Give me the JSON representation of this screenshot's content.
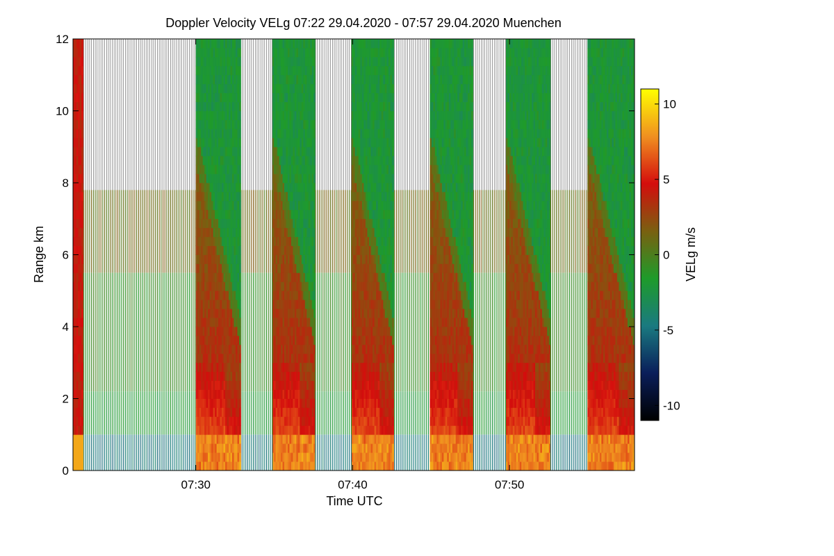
{
  "chart_data": {
    "type": "heatmap",
    "title": "Doppler Velocity VELg   07:22 29.04.2020 - 07:57 29.04.2020 Muenchen",
    "xlabel": "Time UTC",
    "ylabel": "Range km",
    "x_range_minutes": [
      0,
      35.8
    ],
    "x_start_time": "07:22:10",
    "x_ticks": [
      {
        "label": "07:30",
        "minute": 7.83
      },
      {
        "label": "07:40",
        "minute": 17.83
      },
      {
        "label": "07:50",
        "minute": 27.83
      }
    ],
    "ylim": [
      0,
      12
    ],
    "y_ticks": [
      0,
      2,
      4,
      6,
      8,
      10,
      12
    ],
    "colorbar": {
      "label": "VELg m/s",
      "range": [
        -11,
        11
      ],
      "ticks": [
        -10,
        -5,
        0,
        5,
        10
      ],
      "stops": [
        "#000000",
        "#0a1e5a",
        "#1a7a80",
        "#1e9b2a",
        "#7a6010",
        "#d40d0d",
        "#f09020",
        "#ffff00"
      ]
    },
    "dense_scans": [
      {
        "start_min": 0.0,
        "end_min": 0.65
      },
      {
        "start_min": 7.83,
        "end_min": 10.7
      },
      {
        "start_min": 12.7,
        "end_min": 15.45
      },
      {
        "start_min": 17.75,
        "end_min": 20.45
      },
      {
        "start_min": 22.75,
        "end_min": 25.5
      },
      {
        "start_min": 27.6,
        "end_min": 30.45
      },
      {
        "start_min": 32.8,
        "end_min": 35.8
      }
    ],
    "gap_top_km": 7.8
  }
}
